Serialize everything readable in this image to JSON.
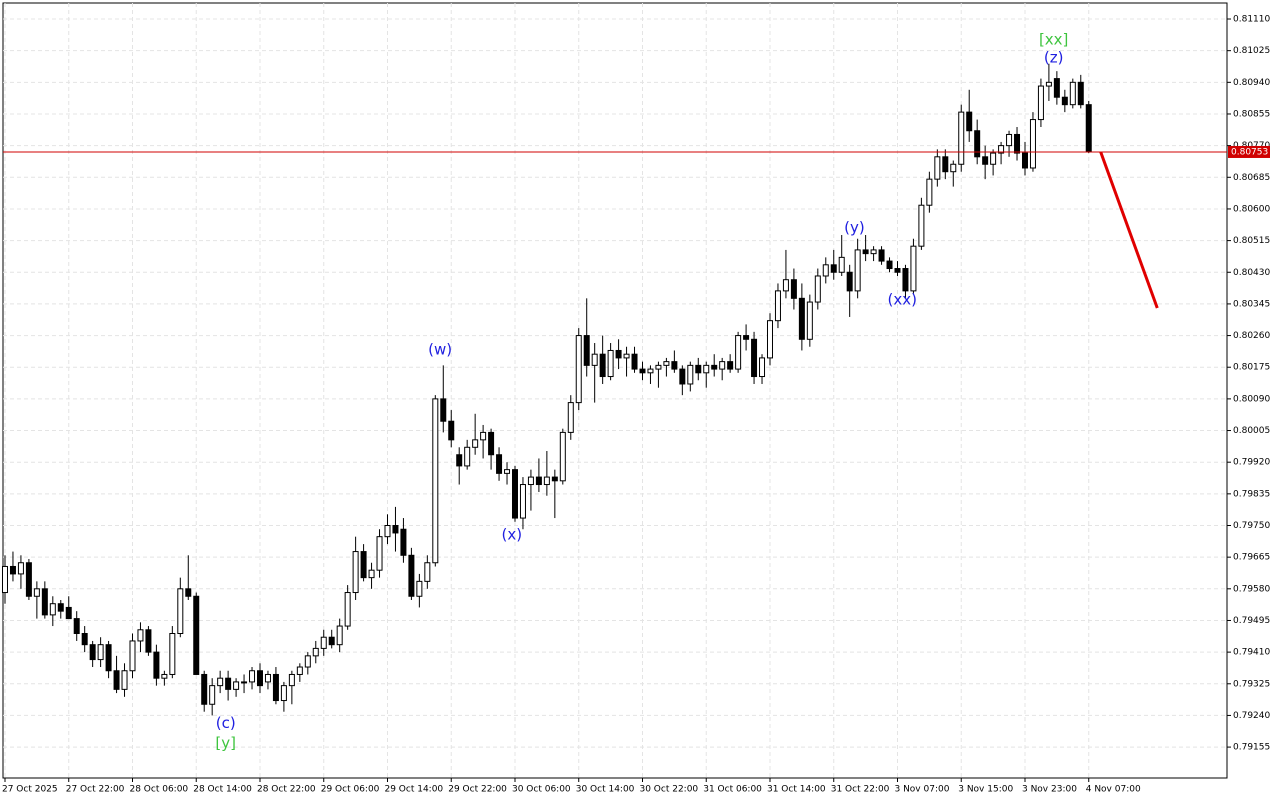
{
  "chart_data": {
    "type": "candlestick",
    "up_color": "#ffffff",
    "down_color": "#000000",
    "edge_color": "#000000",
    "grid": true,
    "xlim": [
      -0.25,
      153.35
    ],
    "ylim": [
      0.79072,
      0.81153
    ],
    "yticks": [
      {
        "value": 0.8111,
        "label": "0.81110"
      },
      0.81025,
      {
        "value": 0.8094,
        "label": "0.80940"
      },
      0.80855,
      {
        "value": 0.8077,
        "label": "0.80770"
      },
      0.80685,
      {
        "value": 0.806,
        "label": "0.80600"
      },
      0.80515,
      {
        "value": 0.8043,
        "label": "0.80430"
      },
      0.80345,
      {
        "value": 0.8026,
        "label": "0.80260"
      },
      0.80175,
      {
        "value": 0.8009,
        "label": "0.80090"
      },
      0.80005,
      {
        "value": 0.7992,
        "label": "0.79920"
      },
      0.79835,
      {
        "value": 0.7975,
        "label": "0.79750"
      },
      0.79665,
      {
        "value": 0.7958,
        "label": "0.79580"
      },
      0.79495,
      {
        "value": 0.7941,
        "label": "0.79410"
      },
      0.79325,
      {
        "value": 0.7924,
        "label": "0.79240"
      },
      0.79155
    ],
    "xticks": [
      {
        "value": 0,
        "label": "27 Oct 2025"
      },
      {
        "value": 8,
        "label": "27 Oct 22:00"
      },
      {
        "value": 16,
        "label": "28 Oct 06:00"
      },
      {
        "value": 24,
        "label": "28 Oct 14:00"
      },
      {
        "value": 32,
        "label": "28 Oct 22:00"
      },
      {
        "value": 40,
        "label": "29 Oct 06:00"
      },
      {
        "value": 48,
        "label": "29 Oct 14:00"
      },
      {
        "value": 56,
        "label": "29 Oct 22:00"
      },
      {
        "value": 64,
        "label": "30 Oct 06:00"
      },
      {
        "value": 72,
        "label": "30 Oct 14:00"
      },
      {
        "value": 80,
        "label": "30 Oct 22:00"
      },
      {
        "value": 88,
        "label": "31 Oct 06:00"
      },
      {
        "value": 96,
        "label": "31 Oct 14:00"
      },
      {
        "value": 104,
        "label": "31 Oct 22:00"
      },
      {
        "value": 112,
        "label": "3 Nov 07:00"
      },
      {
        "value": 120,
        "label": "3 Nov 15:00"
      },
      {
        "value": 128,
        "label": "3 Nov 23:00"
      },
      {
        "value": 136,
        "label": "4 Nov 07:00"
      }
    ],
    "ohlc": [
      [
        0.7957,
        0.7967,
        0.7954,
        0.7964
      ],
      [
        0.7964,
        0.7968,
        0.796,
        0.7962
      ],
      [
        0.7962,
        0.7967,
        0.7958,
        0.7965
      ],
      [
        0.7965,
        0.7966,
        0.7955,
        0.7956
      ],
      [
        0.7956,
        0.796,
        0.795,
        0.7958
      ],
      [
        0.7958,
        0.796,
        0.795,
        0.7951
      ],
      [
        0.7951,
        0.7956,
        0.7948,
        0.7954
      ],
      [
        0.7954,
        0.7955,
        0.795,
        0.7952
      ],
      [
        0.7953,
        0.7956,
        0.795,
        0.795
      ],
      [
        0.795,
        0.7952,
        0.7944,
        0.7946
      ],
      [
        0.7946,
        0.7948,
        0.7941,
        0.7943
      ],
      [
        0.7943,
        0.7944,
        0.7937,
        0.7939
      ],
      [
        0.7939,
        0.7945,
        0.7937,
        0.7943
      ],
      [
        0.7943,
        0.7944,
        0.7934,
        0.7936
      ],
      [
        0.7936,
        0.794,
        0.793,
        0.7931
      ],
      [
        0.7931,
        0.7938,
        0.7929,
        0.7936
      ],
      [
        0.7936,
        0.7946,
        0.7934,
        0.7944
      ],
      [
        0.7944,
        0.7949,
        0.7941,
        0.7947
      ],
      [
        0.7947,
        0.7948,
        0.794,
        0.7941
      ],
      [
        0.7941,
        0.7943,
        0.7932,
        0.7934
      ],
      [
        0.7934,
        0.7936,
        0.7932,
        0.7935
      ],
      [
        0.7935,
        0.7948,
        0.7934,
        0.7946
      ],
      [
        0.7946,
        0.7961,
        0.7945,
        0.7958
      ],
      [
        0.7958,
        0.7967,
        0.7955,
        0.7956
      ],
      [
        0.7956,
        0.7957,
        0.7935,
        0.7935
      ],
      [
        0.7935,
        0.7936,
        0.7925,
        0.7927
      ],
      [
        0.7927,
        0.7934,
        0.7924,
        0.7932
      ],
      [
        0.7932,
        0.7936,
        0.793,
        0.7934
      ],
      [
        0.7934,
        0.7936,
        0.7928,
        0.7931
      ],
      [
        0.7931,
        0.7934,
        0.7929,
        0.7933
      ],
      [
        0.7933,
        0.7935,
        0.793,
        0.7933
      ],
      [
        0.7933,
        0.7937,
        0.7931,
        0.7936
      ],
      [
        0.7936,
        0.7938,
        0.793,
        0.7932
      ],
      [
        0.7933,
        0.7936,
        0.7931,
        0.7935
      ],
      [
        0.7935,
        0.7937,
        0.7927,
        0.7928
      ],
      [
        0.7928,
        0.7933,
        0.7925,
        0.7932
      ],
      [
        0.7932,
        0.7936,
        0.7927,
        0.7935
      ],
      [
        0.7935,
        0.7938,
        0.7933,
        0.7937
      ],
      [
        0.7937,
        0.7941,
        0.7935,
        0.794
      ],
      [
        0.794,
        0.7944,
        0.7938,
        0.7942
      ],
      [
        0.7942,
        0.7947,
        0.794,
        0.7945
      ],
      [
        0.7945,
        0.7947,
        0.7942,
        0.7943
      ],
      [
        0.7943,
        0.795,
        0.7941,
        0.7948
      ],
      [
        0.7948,
        0.7959,
        0.7947,
        0.7957
      ],
      [
        0.7957,
        0.7972,
        0.7955,
        0.7968
      ],
      [
        0.7968,
        0.797,
        0.796,
        0.7961
      ],
      [
        0.7961,
        0.7965,
        0.7958,
        0.7963
      ],
      [
        0.7963,
        0.7974,
        0.7961,
        0.7972
      ],
      [
        0.7972,
        0.7978,
        0.797,
        0.7975
      ],
      [
        0.7975,
        0.798,
        0.7968,
        0.7973
      ],
      [
        0.7974,
        0.7977,
        0.7965,
        0.7967
      ],
      [
        0.7967,
        0.7969,
        0.7955,
        0.7956
      ],
      [
        0.7956,
        0.7962,
        0.7953,
        0.796
      ],
      [
        0.796,
        0.7967,
        0.7958,
        0.7965
      ],
      [
        0.7965,
        0.801,
        0.7964,
        0.8009
      ],
      [
        0.8009,
        0.8018,
        0.8,
        0.8003
      ],
      [
        0.8003,
        0.8006,
        0.7996,
        0.7998
      ],
      [
        0.7994,
        0.7996,
        0.7986,
        0.7991
      ],
      [
        0.7991,
        0.7998,
        0.799,
        0.7996
      ],
      [
        0.7996,
        0.8005,
        0.7994,
        0.7998
      ],
      [
        0.7998,
        0.8002,
        0.7993,
        0.8
      ],
      [
        0.8,
        0.8001,
        0.799,
        0.7994
      ],
      [
        0.7994,
        0.7996,
        0.7987,
        0.7989
      ],
      [
        0.7989,
        0.7992,
        0.7986,
        0.799
      ],
      [
        0.799,
        0.7991,
        0.7976,
        0.7977
      ],
      [
        0.7977,
        0.7988,
        0.7974,
        0.7986
      ],
      [
        0.7986,
        0.799,
        0.7979,
        0.7988
      ],
      [
        0.7988,
        0.7993,
        0.7984,
        0.7986
      ],
      [
        0.7986,
        0.7995,
        0.7983,
        0.7988
      ],
      [
        0.7988,
        0.799,
        0.7977,
        0.7987
      ],
      [
        0.7987,
        0.8001,
        0.7986,
        0.8
      ],
      [
        0.8,
        0.801,
        0.7998,
        0.8008
      ],
      [
        0.8008,
        0.8028,
        0.8006,
        0.8026
      ],
      [
        0.8026,
        0.8036,
        0.8015,
        0.8018
      ],
      [
        0.8018,
        0.8024,
        0.8008,
        0.8021
      ],
      [
        0.8021,
        0.8026,
        0.8013,
        0.8015
      ],
      [
        0.8015,
        0.8024,
        0.8014,
        0.8022
      ],
      [
        0.8022,
        0.8025,
        0.8017,
        0.802
      ],
      [
        0.802,
        0.8023,
        0.8015,
        0.8021
      ],
      [
        0.8021,
        0.8023,
        0.8016,
        0.8017
      ],
      [
        0.8017,
        0.8019,
        0.8014,
        0.8016
      ],
      [
        0.8016,
        0.8018,
        0.8013,
        0.8017
      ],
      [
        0.8017,
        0.8019,
        0.8012,
        0.8018
      ],
      [
        0.8018,
        0.802,
        0.8015,
        0.8019
      ],
      [
        0.8019,
        0.8022,
        0.8016,
        0.8017
      ],
      [
        0.8017,
        0.8018,
        0.801,
        0.8013
      ],
      [
        0.8013,
        0.8019,
        0.8011,
        0.8018
      ],
      [
        0.8018,
        0.802,
        0.8014,
        0.8016
      ],
      [
        0.8016,
        0.8019,
        0.8012,
        0.8018
      ],
      [
        0.8018,
        0.8021,
        0.8015,
        0.8017
      ],
      [
        0.8017,
        0.802,
        0.8014,
        0.8019
      ],
      [
        0.8019,
        0.8021,
        0.8016,
        0.8017
      ],
      [
        0.8017,
        0.8027,
        0.8016,
        0.8026
      ],
      [
        0.8026,
        0.8029,
        0.8022,
        0.8025
      ],
      [
        0.8025,
        0.8027,
        0.8013,
        0.8015
      ],
      [
        0.8015,
        0.8021,
        0.8013,
        0.802
      ],
      [
        0.802,
        0.8032,
        0.8018,
        0.803
      ],
      [
        0.803,
        0.804,
        0.8028,
        0.8038
      ],
      [
        0.8038,
        0.8049,
        0.8036,
        0.8041
      ],
      [
        0.8041,
        0.8044,
        0.8033,
        0.8036
      ],
      [
        0.8036,
        0.804,
        0.8022,
        0.8025
      ],
      [
        0.8025,
        0.8037,
        0.8023,
        0.8035
      ],
      [
        0.8035,
        0.8044,
        0.8033,
        0.8042
      ],
      [
        0.8042,
        0.8047,
        0.804,
        0.8045
      ],
      [
        0.8045,
        0.8049,
        0.8041,
        0.8043
      ],
      [
        0.8043,
        0.8053,
        0.8042,
        0.8047
      ],
      [
        0.8043,
        0.8045,
        0.8031,
        0.8038
      ],
      [
        0.8038,
        0.8052,
        0.8036,
        0.8049
      ],
      [
        0.8049,
        0.8053,
        0.8046,
        0.8048
      ],
      [
        0.8048,
        0.805,
        0.8046,
        0.8049
      ],
      [
        0.8049,
        0.805,
        0.8045,
        0.8046
      ],
      [
        0.8046,
        0.8047,
        0.8043,
        0.8044
      ],
      [
        0.8044,
        0.8046,
        0.8042,
        0.8043
      ],
      [
        0.8044,
        0.8045,
        0.8036,
        0.8038
      ],
      [
        0.8038,
        0.8052,
        0.8037,
        0.805
      ],
      [
        0.805,
        0.8063,
        0.8049,
        0.8061
      ],
      [
        0.8061,
        0.807,
        0.8059,
        0.8068
      ],
      [
        0.8068,
        0.8076,
        0.8066,
        0.8074
      ],
      [
        0.8074,
        0.8076,
        0.8068,
        0.807
      ],
      [
        0.807,
        0.8073,
        0.8066,
        0.8072
      ],
      [
        0.8072,
        0.8088,
        0.807,
        0.8086
      ],
      [
        0.8086,
        0.8092,
        0.8078,
        0.8081
      ],
      [
        0.8081,
        0.8084,
        0.8072,
        0.8074
      ],
      [
        0.8074,
        0.8077,
        0.8068,
        0.8072
      ],
      [
        0.8072,
        0.8076,
        0.8069,
        0.8075
      ],
      [
        0.8075,
        0.8078,
        0.8072,
        0.8077
      ],
      [
        0.8077,
        0.8081,
        0.8074,
        0.808
      ],
      [
        0.808,
        0.8082,
        0.8073,
        0.8075
      ],
      [
        0.8075,
        0.8078,
        0.8069,
        0.8071
      ],
      [
        0.8071,
        0.8086,
        0.807,
        0.8084
      ],
      [
        0.8084,
        0.8095,
        0.8082,
        0.8093
      ],
      [
        0.8093,
        0.8099,
        0.8089,
        0.8094
      ],
      [
        0.8095,
        0.8097,
        0.8088,
        0.809
      ],
      [
        0.809,
        0.8092,
        0.8086,
        0.8088
      ],
      [
        0.8088,
        0.8095,
        0.8087,
        0.8094
      ],
      [
        0.8094,
        0.8096,
        0.8087,
        0.8088
      ],
      [
        0.8088,
        0.8089,
        0.8075,
        0.80753
      ]
    ],
    "current_price": 0.80753,
    "price_line_color": "#d00000",
    "forecast": {
      "color": "#e00000",
      "x": [
        137.5,
        144.6
      ],
      "y": [
        0.80753,
        0.80334
      ]
    },
    "annotations": [
      {
        "text": "(c)",
        "x": 27.7,
        "y": 0.79219,
        "color": "#2020e0"
      },
      {
        "text": "[y]",
        "x": 27.7,
        "y": 0.79165,
        "color": "#3ec43e"
      },
      {
        "text": "(w)",
        "x": 54.6,
        "y": 0.80221,
        "color": "#2020e0"
      },
      {
        "text": "(x)",
        "x": 63.6,
        "y": 0.79724,
        "color": "#2020e0"
      },
      {
        "text": "(y)",
        "x": 106.6,
        "y": 0.80549,
        "color": "#2020e0"
      },
      {
        "text": "(xx)",
        "x": 112.6,
        "y": 0.80355,
        "color": "#2020e0"
      },
      {
        "text": "(z)",
        "x": 131.6,
        "y": 0.81005,
        "color": "#2020e0"
      },
      {
        "text": "[xx]",
        "x": 131.6,
        "y": 0.81054,
        "color": "#3ec43e"
      }
    ]
  }
}
